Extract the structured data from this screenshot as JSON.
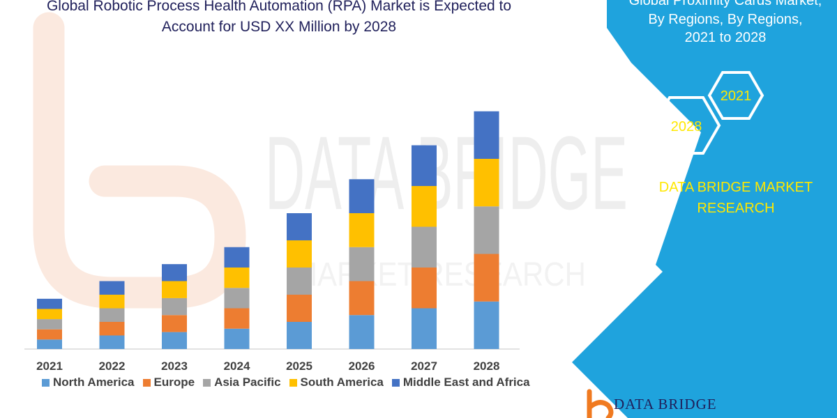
{
  "header": {
    "title_line_1": "Global Robotic Process Health Automation (RPA) Market is Expected to",
    "title_line_2": "Account for USD XX Million by 2028"
  },
  "side_panel": {
    "line_1": "Global Proximity Cards Market,",
    "line_2": "By Regions, By Regions,",
    "line_3": "2021 to 2028",
    "hex_badge_1": "2021",
    "hex_badge_2": "2028",
    "brand_line_1": "DATA BRIDGE MARKET",
    "brand_line_2": "RESEARCH"
  },
  "footer": {
    "logo_text": "DATA BRIDGE"
  },
  "watermark": {
    "text": "DATA BRIDGE",
    "subtext": "MARKET RESEARCH"
  },
  "colors": {
    "panel_blue": "#1fa3dd",
    "title_navy": "#1f1f5a",
    "brand_yellow": "#ffe800",
    "logo_orange": "#f07a20"
  },
  "chart_data": {
    "type": "bar",
    "stacked": true,
    "categories": [
      "2021",
      "2022",
      "2023",
      "2024",
      "2025",
      "2026",
      "2027",
      "2028"
    ],
    "series": [
      {
        "name": "North America",
        "color": "#5b9bd5",
        "values": [
          14,
          20,
          25,
          30,
          40,
          50,
          60,
          70
        ]
      },
      {
        "name": "Europe",
        "color": "#ed7d31",
        "values": [
          15,
          20,
          25,
          30,
          40,
          50,
          60,
          70
        ]
      },
      {
        "name": "Asia Pacific",
        "color": "#a5a5a5",
        "values": [
          15,
          20,
          25,
          30,
          40,
          50,
          60,
          70
        ]
      },
      {
        "name": "South America",
        "color": "#ffc000",
        "values": [
          15,
          20,
          25,
          30,
          40,
          50,
          60,
          70
        ]
      },
      {
        "name": "Middle East and Africa",
        "color": "#4472c4",
        "values": [
          15,
          20,
          25,
          30,
          40,
          50,
          60,
          70
        ]
      }
    ],
    "ylim": [
      0,
      360
    ],
    "grid": false,
    "legend": "bottom"
  }
}
